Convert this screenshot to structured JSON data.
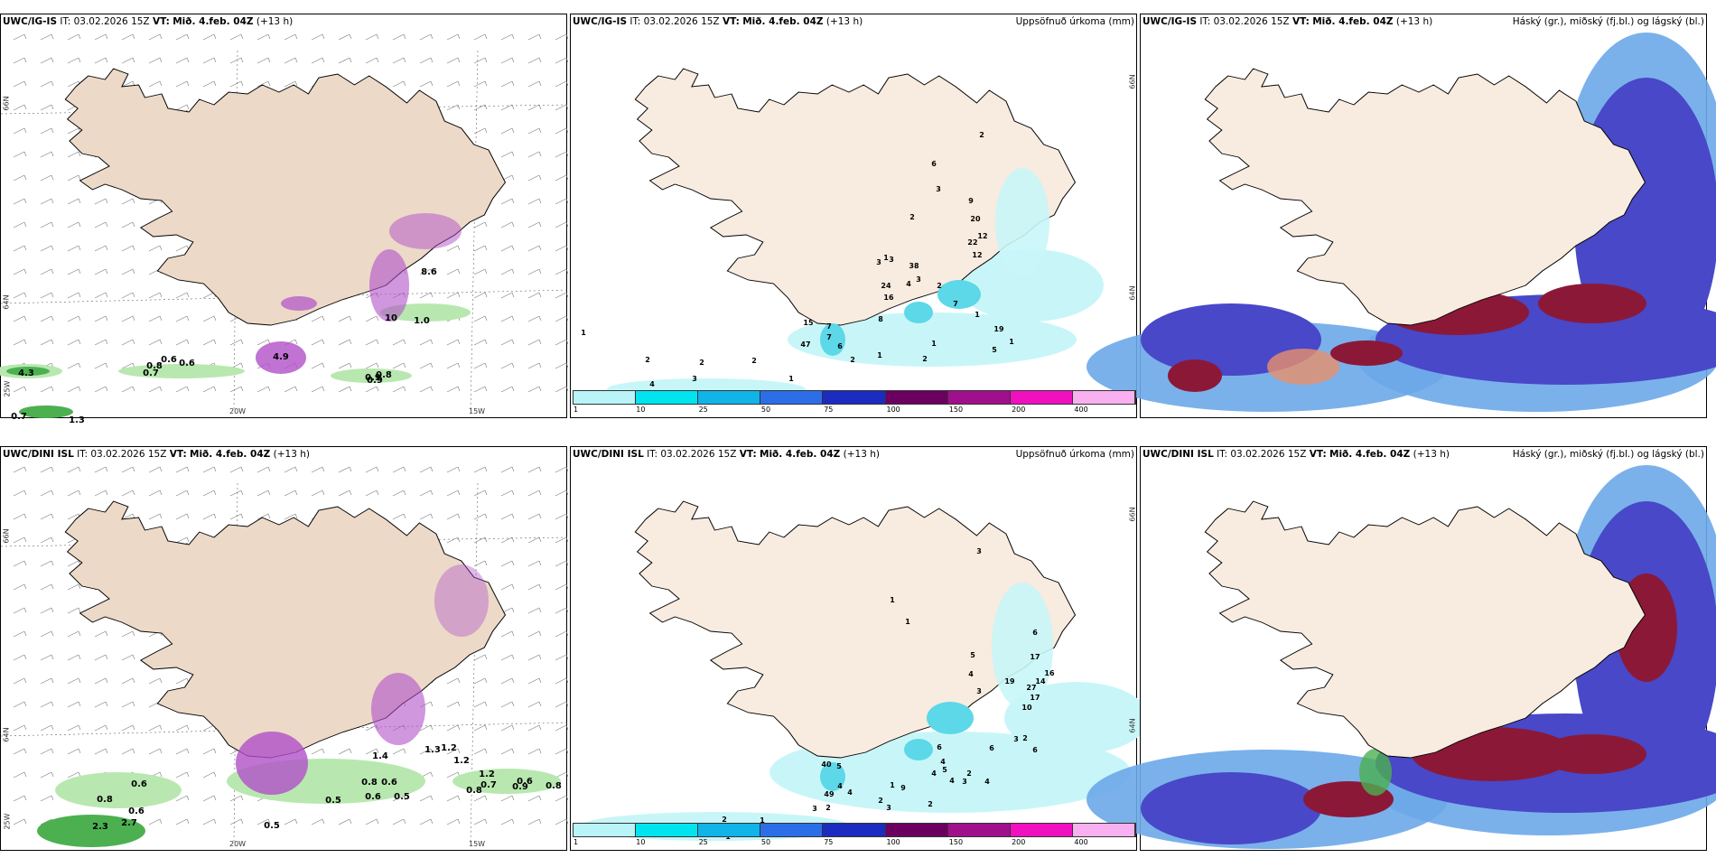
{
  "common": {
    "it_label": "IT:",
    "it_value": "03.02.2026 15Z",
    "vt_label": "VT:",
    "vt_value": "Mið. 4.feb. 04Z",
    "lead": "(+13 h)"
  },
  "rows": [
    {
      "model": "UWC/IG-IS"
    },
    {
      "model": "UWC/DINI ISL"
    }
  ],
  "panel_titles": {
    "precip": "Uppsöfnuð úrkoma (mm)",
    "clouds": "Háský (gr.), miðský (fj.bl.) og lágský (bl.)"
  },
  "axes": {
    "lon": [
      "20W",
      "15W"
    ],
    "lat": [
      "66N",
      "64N",
      "25W"
    ],
    "lat_right": [
      "66N",
      "64N"
    ]
  },
  "legend": {
    "ticks": [
      "1",
      "10",
      "25",
      "50",
      "75",
      "100",
      "150",
      "200",
      "400"
    ],
    "colors": [
      "#b8f4f8",
      "#00e4f0",
      "#10b4e8",
      "#2c6ee8",
      "#1c2cc0",
      "#6c0060",
      "#a0108c",
      "#f010c0",
      "#f8b0f0"
    ]
  },
  "colors": {
    "land": "#f8ebdf",
    "wind_land": "#ecd9c8",
    "green": "#4cb050",
    "light_green": "#b8e8b0",
    "magenta": "#b050c8",
    "pale_cyan": "#c8f6f8",
    "cyan": "#5cd8e8",
    "high_cloud": "#6ca8e8",
    "mid_cloud": "#4848c8",
    "low_cloud": "#8c1838",
    "orange_cloud": "#e8906c"
  },
  "wind_labels": {
    "top": [
      "4.3",
      "0.7",
      "1.3",
      "0.8",
      "0.7",
      "0.6",
      "0.6",
      "1.0",
      "0.9",
      "0.8",
      "0.9",
      "10",
      "8.6",
      "4.9"
    ],
    "bottom": [
      "2.3",
      "2.7",
      "0.8",
      "0.6",
      "0.6",
      "0.5",
      "0.5",
      "0.6",
      "0.5",
      "1.4",
      "0.8",
      "0.6",
      "1.2",
      "1.3",
      "0.7",
      "0.6",
      "0.9",
      "0.8",
      "1.2",
      "0.8",
      "1.2"
    ]
  },
  "precip_labels": {
    "top": [
      "1",
      "2",
      "4",
      "3",
      "2",
      "2",
      "1",
      "15",
      "7",
      "7",
      "47",
      "6",
      "2",
      "1",
      "2",
      "1",
      "24",
      "16",
      "38",
      "8",
      "3",
      "3",
      "4",
      "3",
      "2",
      "1",
      "1",
      "5",
      "19",
      "7",
      "22",
      "20",
      "12",
      "12",
      "9",
      "3",
      "6",
      "2",
      "1",
      "2"
    ],
    "bottom": [
      "2",
      "1",
      "1",
      "2",
      "3",
      "2",
      "2",
      "40",
      "5",
      "4",
      "49",
      "4",
      "9",
      "3",
      "2",
      "1",
      "6",
      "5",
      "4",
      "4",
      "4",
      "3",
      "4",
      "2",
      "6",
      "6",
      "2",
      "3",
      "10",
      "27",
      "19",
      "17",
      "16",
      "17",
      "14",
      "6",
      "3",
      "1",
      "5",
      "4",
      "3",
      "1"
    ]
  }
}
